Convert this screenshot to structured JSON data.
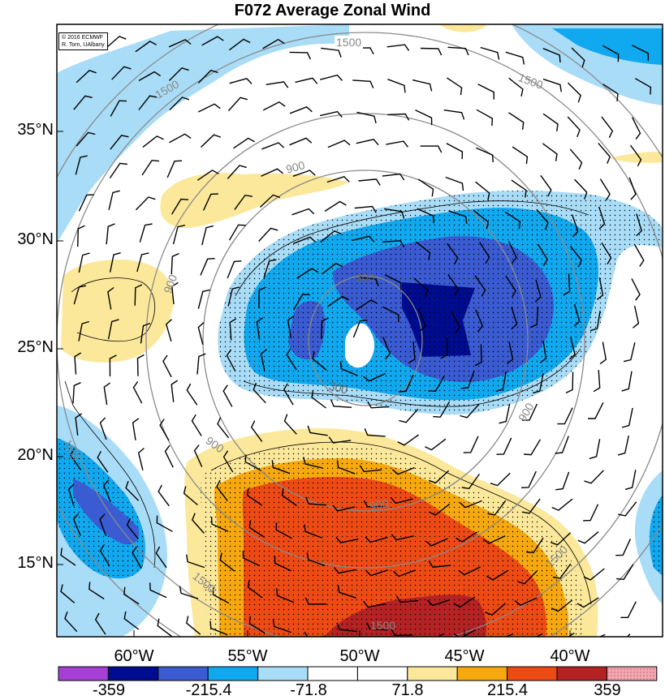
{
  "title": "F072 Average Zonal Wind",
  "credit": {
    "line1": "© 2016 ECMWF",
    "line2": "R. Torn, UAlbany"
  },
  "lat_labels": [
    "35°N",
    "30°N",
    "25°N",
    "20°N",
    "15°N"
  ],
  "lon_labels": [
    "60°W",
    "55°W",
    "50°W",
    "45°W",
    "40°W"
  ],
  "contour_labels": [
    "1500",
    "1500",
    "1500",
    "900",
    "900",
    "300",
    "300",
    "900",
    "900",
    "900",
    "1500",
    "1500",
    "1500",
    "1500"
  ],
  "colorbar": {
    "tick_labels": [
      "-359",
      "-215.4",
      "-71.8",
      "71.8",
      "215.4",
      "359"
    ],
    "colors": [
      "#a63fd6",
      "#000c8f",
      "#3a5bd1",
      "#10a8ef",
      "#a9dcf7",
      "#ffffff",
      "#ffffff",
      "#fbe89a",
      "#f6a80e",
      "#ee4a14",
      "#b52224",
      "#f2a7b2"
    ]
  },
  "legend_colors": {
    "strong_easterly": "#000c8f",
    "easterly": "#3a5bd1",
    "moderate_easterly": "#10a8ef",
    "weak_easterly": "#a9dcf7",
    "weak_westerly": "#fbe89a",
    "moderate_westerly": "#f6a80e",
    "westerly": "#ee4a14",
    "strong_westerly": "#b52224"
  }
}
